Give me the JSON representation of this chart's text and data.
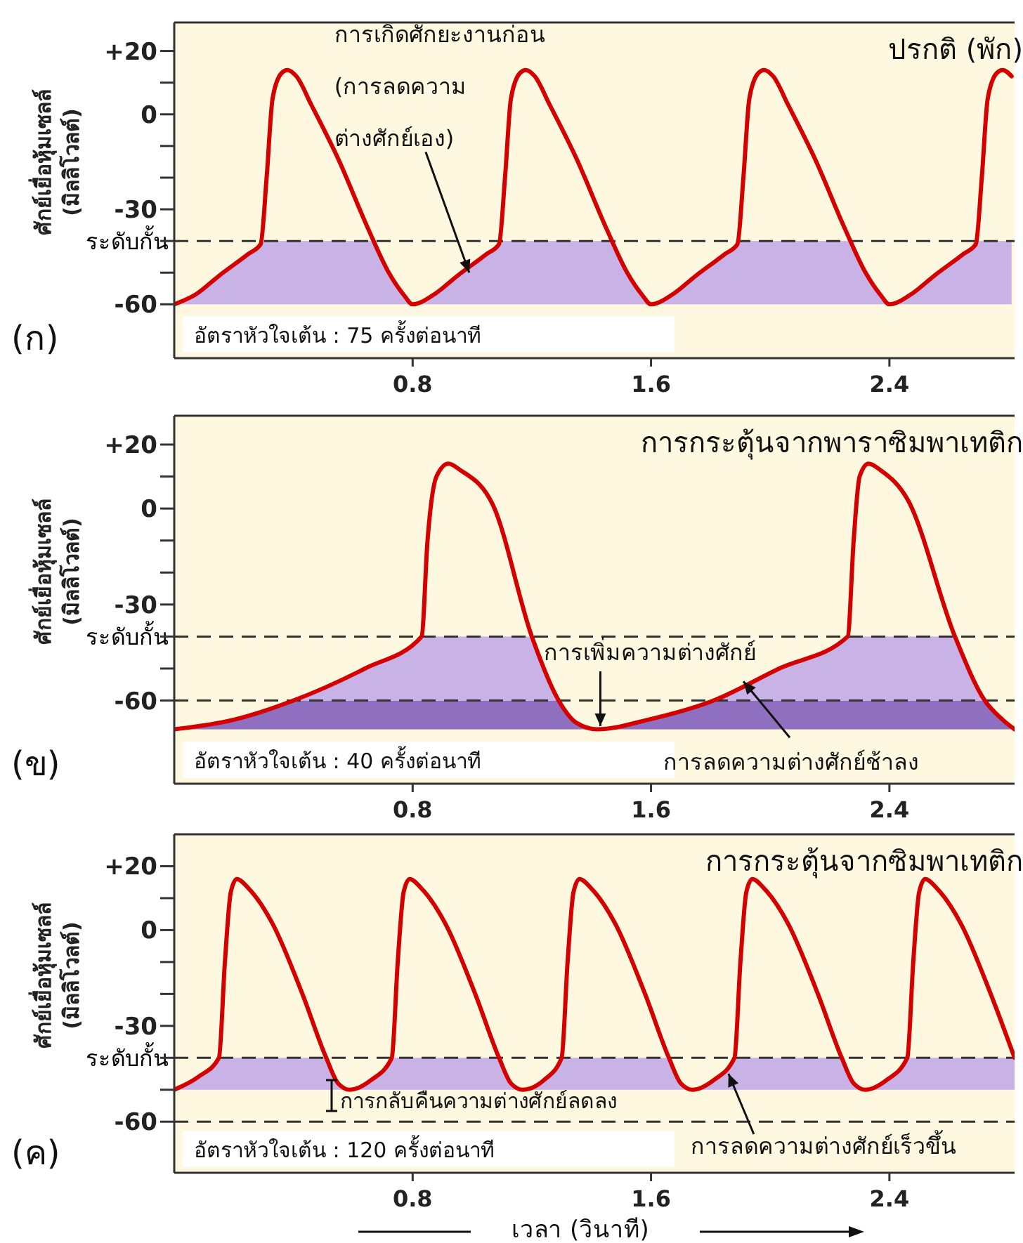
{
  "chart_data": [
    {
      "type": "line",
      "title": "ปรกติ (พัก)",
      "ylabel": "ศักย์เยื่อหุ้มเซลล์\n(มิลลิโวลต์)",
      "xlim": [
        0,
        2.82
      ],
      "xticks": [
        0.8,
        1.6,
        2.4
      ],
      "ylim": [
        -77,
        29
      ],
      "yticks": [
        {
          "value": 20,
          "label": "+20"
        },
        {
          "value": 10,
          "label": null
        },
        0,
        {
          "value": -10,
          "label": null
        },
        {
          "value": -20,
          "label": null
        },
        -30,
        {
          "value": -40,
          "label": null
        },
        {
          "value": -50,
          "label": null
        },
        -60
      ],
      "series": [
        {
          "type": "line",
          "color": "#d40000",
          "x": [
            0,
            0.07,
            0.15,
            0.25,
            0.29,
            0.31,
            0.33,
            0.36,
            0.38,
            0.41,
            0.46,
            0.55,
            0.65,
            0.72,
            0.77,
            0.8,
            0.87,
            0.95,
            1.05,
            1.09,
            1.11,
            1.13,
            1.16,
            1.18,
            1.21,
            1.26,
            1.35,
            1.45,
            1.52,
            1.57,
            1.6,
            1.67,
            1.75,
            1.85,
            1.89,
            1.91,
            1.93,
            1.96,
            1.98,
            2.01,
            2.06,
            2.15,
            2.25,
            2.32,
            2.37,
            2.4,
            2.47,
            2.55,
            2.65,
            2.69,
            2.71,
            2.73,
            2.76,
            2.78,
            2.81
          ],
          "values": [
            -60,
            -57,
            -51,
            -44,
            -41,
            -20,
            5,
            13,
            14,
            12,
            3,
            -14,
            -36,
            -50,
            -57,
            -60,
            -57,
            -51,
            -44,
            -41,
            -20,
            5,
            13,
            14,
            12,
            3,
            -14,
            -36,
            -50,
            -57,
            -60,
            -57,
            -51,
            -44,
            -41,
            -20,
            5,
            13,
            14,
            12,
            3,
            -14,
            -36,
            -50,
            -57,
            -60,
            -57,
            -51,
            -44,
            -41,
            -20,
            5,
            13,
            14,
            12
          ]
        }
      ],
      "bands": [
        {
          "axis": "y",
          "from": -60,
          "to": -40,
          "color": "#c9b3e6"
        }
      ],
      "ref_lines": [
        {
          "axis": "y",
          "value": -40,
          "label": "ระดับกั้น",
          "line_style": "dashed",
          "color": "#333333"
        }
      ],
      "annotations": [
        "(ก)",
        "อัตราหัวใจเต้น : 75 ครั้งต่อนาที",
        {
          "text": "การเกิดศักยะงานก่อน\n(การลดความ\nต่างศักย์เอง)",
          "x": 0.99,
          "y": -50
        }
      ],
      "grid": false,
      "line_style": "solid"
    },
    {
      "type": "line",
      "title": "การกระตุ้นจากพาราซิมพาเทติก",
      "ylabel": "ศักย์เยื่อหุ้มเซลล์\n(มิลลิโวลต์)",
      "xlim": [
        0,
        2.82
      ],
      "xticks": [
        0.8,
        1.6,
        2.4
      ],
      "ylim": [
        -86,
        29
      ],
      "yticks": [
        {
          "value": 20,
          "label": "+20"
        },
        {
          "value": 10,
          "label": null
        },
        0,
        {
          "value": -10,
          "label": null
        },
        {
          "value": -20,
          "label": null
        },
        -30,
        {
          "value": -40,
          "label": null
        },
        {
          "value": -50,
          "label": null
        },
        -60
      ],
      "series": [
        {
          "type": "line",
          "color": "#d40000",
          "x": [
            0,
            0.2,
            0.4,
            0.64,
            0.83,
            0.85,
            0.88,
            0.92,
            0.96,
            1.07,
            1.2,
            1.29,
            1.35,
            1.42,
            1.59,
            1.81,
            2.03,
            2.26,
            2.28,
            2.3,
            2.33,
            2.37,
            2.46,
            2.62,
            2.72,
            2.78,
            2.82
          ],
          "values": [
            -69,
            -66,
            -60,
            -50,
            -40,
            -10,
            10,
            14,
            12,
            1,
            -40,
            -60,
            -67,
            -69,
            -66,
            -60,
            -50,
            -40,
            -10,
            10,
            14,
            12,
            3,
            -40,
            -60,
            -66,
            -69
          ]
        }
      ],
      "bands": [
        {
          "axis": "y",
          "from": -69,
          "to": -60,
          "color": "#8f6fc0"
        },
        {
          "axis": "y",
          "from": -60,
          "to": -40,
          "color": "#c9b3e6"
        }
      ],
      "ref_lines": [
        {
          "axis": "y",
          "value": -40,
          "label": "ระดับกั้น",
          "line_style": "dashed",
          "color": "#333333"
        },
        {
          "axis": "y",
          "value": -60,
          "line_style": "dashed",
          "color": "#333333"
        }
      ],
      "annotations": [
        "(ข)",
        "อัตราหัวใจเต้น : 40 ครั้งต่อนาที",
        {
          "text": "การเพิ่มความต่างศักย์",
          "x": 1.43,
          "y": -68
        },
        {
          "text": "การลดความต่างศักย์ช้าลง",
          "x": 1.91,
          "y": -54
        }
      ],
      "grid": false,
      "line_style": "solid"
    },
    {
      "type": "line",
      "title": "การกระตุ้นจากซิมพาเทติก",
      "ylabel": "ศักย์เยื่อหุ้มเซลล์\n(มิลลิโวลต์)",
      "xlabel": "เวลา (วินาที)",
      "xlim": [
        0,
        2.82
      ],
      "xticks": [
        0.8,
        1.6,
        2.4
      ],
      "ylim": [
        -76,
        30
      ],
      "yticks": [
        {
          "value": 20,
          "label": "+20"
        },
        {
          "value": 10,
          "label": null
        },
        0,
        {
          "value": -10,
          "label": null
        },
        {
          "value": -20,
          "label": null
        },
        -30,
        {
          "value": -40,
          "label": null
        },
        {
          "value": -50,
          "label": null
        },
        -60
      ],
      "series": [
        {
          "type": "line",
          "color": "#d40000",
          "x": [
            0,
            0.08,
            0.15,
            0.17,
            0.19,
            0.21,
            0.25,
            0.33,
            0.43,
            0.51,
            0.55,
            0.59,
            0.66,
            0.73,
            0.75,
            0.77,
            0.79,
            0.83,
            0.91,
            1.01,
            1.09,
            1.13,
            1.17,
            1.24,
            1.3,
            1.32,
            1.34,
            1.36,
            1.4,
            1.48,
            1.58,
            1.66,
            1.7,
            1.74,
            1.81,
            1.88,
            1.9,
            1.92,
            1.94,
            1.98,
            2.06,
            2.16,
            2.24,
            2.28,
            2.32,
            2.39,
            2.46,
            2.48,
            2.5,
            2.52,
            2.56,
            2.64,
            2.74,
            2.82
          ],
          "values": [
            -50,
            -46,
            -40,
            -10,
            12,
            16,
            13,
            2,
            -20,
            -40,
            -48,
            -50,
            -47,
            -40,
            -10,
            12,
            16,
            13,
            2,
            -20,
            -40,
            -48,
            -50,
            -47,
            -40,
            -10,
            12,
            16,
            13,
            2,
            -20,
            -40,
            -48,
            -50,
            -47,
            -40,
            -10,
            12,
            16,
            13,
            2,
            -20,
            -40,
            -48,
            -50,
            -47,
            -40,
            -10,
            12,
            16,
            13,
            2,
            -20,
            -40
          ]
        }
      ],
      "bands": [
        {
          "axis": "y",
          "from": -50,
          "to": -40,
          "color": "#c9b3e6"
        }
      ],
      "ref_lines": [
        {
          "axis": "y",
          "value": -40,
          "label": "ระดับกั้น",
          "line_style": "dashed",
          "color": "#333333"
        },
        {
          "axis": "y",
          "value": -60,
          "line_style": "dashed",
          "color": "#333333"
        }
      ],
      "annotations": [
        "(ค)",
        "อัตราหัวใจเต้น : 120 ครั้งต่อนาที",
        "การกลับคืนความต่างศักย์ลดลง",
        {
          "text": "การลดความต่างศักย์เร็วขึ้น",
          "x": 1.86,
          "y": -45
        }
      ],
      "grid": false,
      "line_style": "solid"
    }
  ]
}
